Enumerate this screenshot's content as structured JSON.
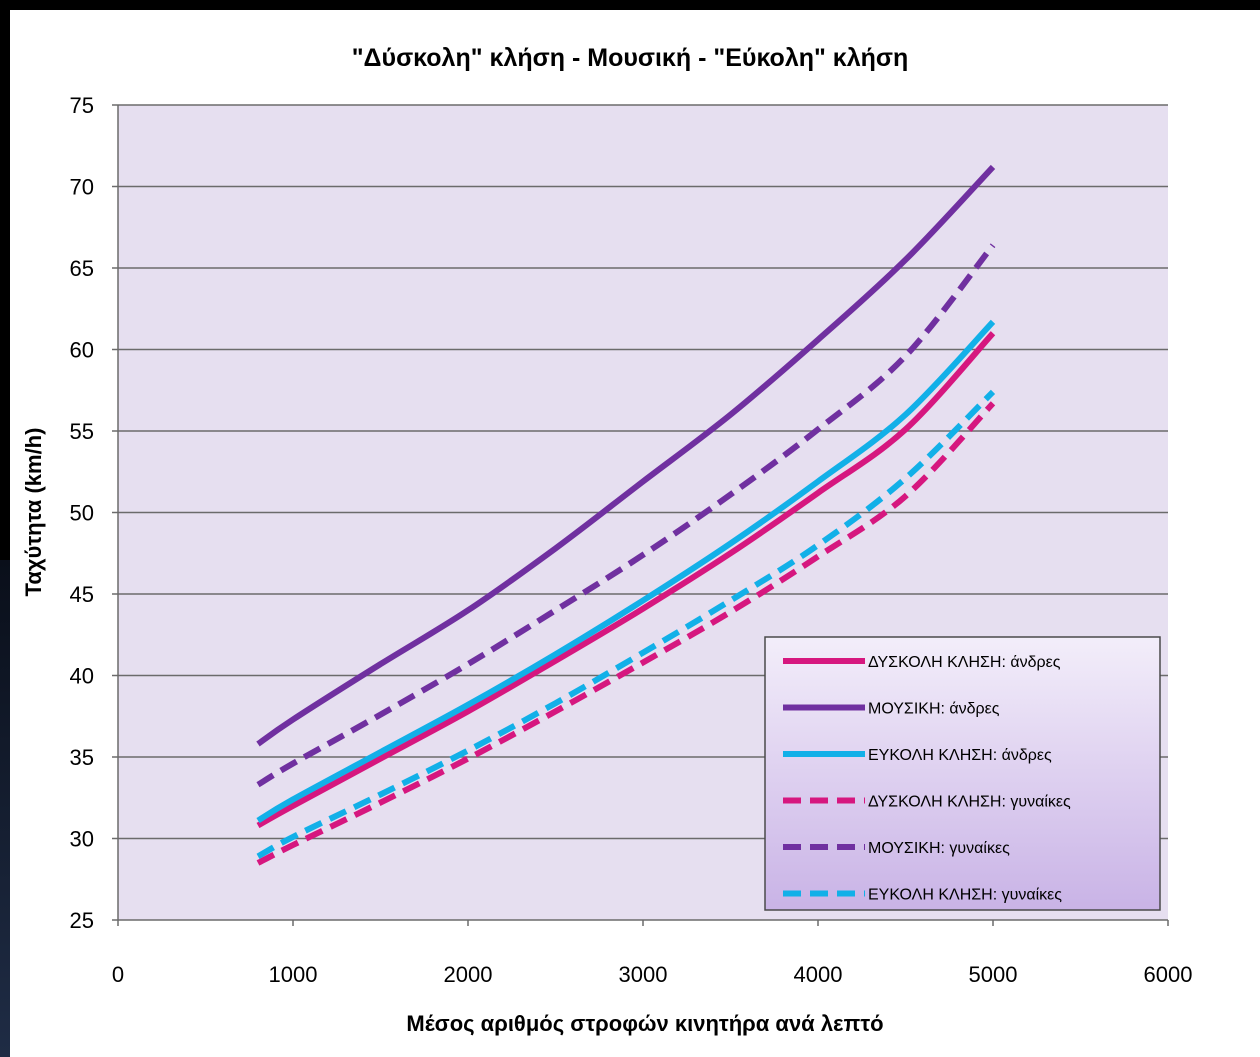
{
  "chart_data": {
    "type": "line",
    "title": "\"Δύσκολη\" κλήση - Μουσική - \"Εύκολη\" κλήση",
    "xlabel": "Μέσος αριθμός στροφών  κινητήρα ανά λεπτό",
    "ylabel": "Ταχύτητα (km/h)",
    "xlim": [
      0,
      6000
    ],
    "ylim": [
      25,
      75
    ],
    "xticks": [
      "0",
      "1000",
      "2000",
      "3000",
      "4000",
      "5000",
      "6000"
    ],
    "yticks": [
      "25",
      "30",
      "35",
      "40",
      "45",
      "50",
      "55",
      "60",
      "65",
      "70",
      "75"
    ],
    "grid": "horizontal",
    "legend_position": "bottom-right",
    "x": [
      800,
      1000,
      1500,
      2000,
      2500,
      3000,
      3500,
      4000,
      4500,
      5000
    ],
    "series": [
      {
        "name": "ΔΥΣΚΟΛΗ ΚΛΗΣΗ: άνδρες",
        "color": "#d6177f",
        "dash": "solid",
        "values": [
          30.8,
          32.0,
          34.9,
          37.8,
          40.9,
          44.1,
          47.5,
          51.2,
          55.1,
          61.0
        ]
      },
      {
        "name": "ΜΟΥΣΙΚΗ: άνδρες",
        "color": "#7030a0",
        "dash": "solid",
        "values": [
          35.8,
          37.3,
          40.7,
          44.0,
          47.8,
          51.9,
          56.0,
          60.6,
          65.5,
          71.2
        ]
      },
      {
        "name": "ΕΥΚΟΛΗ ΚΛΗΣΗ: άνδρες",
        "color": "#12b0e8",
        "dash": "solid",
        "values": [
          31.1,
          32.4,
          35.3,
          38.2,
          41.3,
          44.6,
          48.1,
          51.9,
          56.0,
          61.7
        ]
      },
      {
        "name": "ΔΥΣΚΟΛΗ ΚΛΗΣΗ: γυναίκες",
        "color": "#d6177f",
        "dash": "dashed",
        "values": [
          28.5,
          29.6,
          32.2,
          34.9,
          37.8,
          40.8,
          43.9,
          47.3,
          51.0,
          56.7
        ]
      },
      {
        "name": "ΜΟΥΣΙΚΗ: γυναίκες",
        "color": "#7030a0",
        "dash": "dashed",
        "values": [
          33.3,
          34.6,
          37.6,
          40.7,
          44.0,
          47.4,
          51.1,
          55.1,
          59.6,
          66.4
        ]
      },
      {
        "name": "ΕΥΚΟΛΗ ΚΛΗΣΗ: γυναίκες",
        "color": "#12b0e8",
        "dash": "dashed",
        "values": [
          28.9,
          30.1,
          32.7,
          35.4,
          38.3,
          41.4,
          44.6,
          48.0,
          52.1,
          57.4
        ]
      }
    ],
    "colors": {
      "plot_bg": "#e6dff0",
      "grid": "#6b6b6b"
    }
  }
}
